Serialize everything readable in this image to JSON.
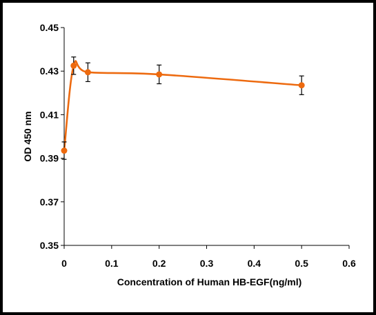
{
  "chart_data": {
    "type": "line",
    "title": "",
    "xlabel": "Concentration of Human HB-EGF(ng/ml)",
    "ylabel": "OD 450 nm",
    "xlim": [
      0,
      0.6
    ],
    "ylim": [
      0.35,
      0.45
    ],
    "x_ticks": [
      "0",
      "0.1",
      "0.2",
      "0.3",
      "0.4",
      "0.5",
      "0.6"
    ],
    "y_ticks": [
      "0.45",
      "0.43",
      "0.41",
      "0.39",
      "0.37",
      "0.35"
    ],
    "grid": false,
    "legend": "none",
    "series": [
      {
        "color": "#ED6A0F",
        "x": [
          0,
          0.02,
          0.05,
          0.2,
          0.5
        ],
        "y": [
          0.3935,
          0.4325,
          0.4295,
          0.4285,
          0.4235
        ],
        "error": [
          0.004,
          0.004,
          0.0043,
          0.0043,
          0.0043
        ]
      }
    ]
  }
}
